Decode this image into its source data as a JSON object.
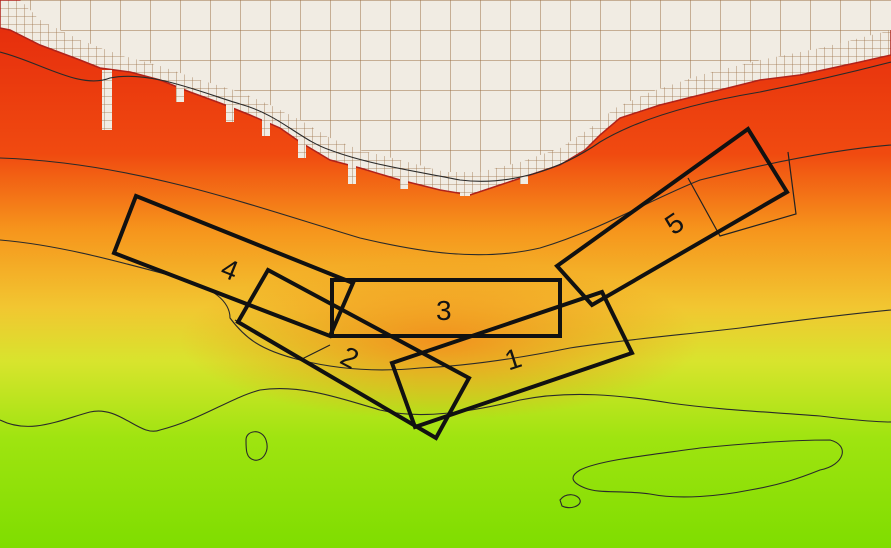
{
  "map": {
    "colors": {
      "land_fill": "#f1ece3",
      "grid_line": "#9b6f45",
      "shore_red": "#e0300e",
      "deep_green": "#7fe000",
      "contour": "#2a2a2a",
      "panel_outline": "#111111"
    },
    "panels": [
      {
        "id": "panel-1",
        "label": "1"
      },
      {
        "id": "panel-2",
        "label": "2"
      },
      {
        "id": "panel-3",
        "label": "3"
      },
      {
        "id": "panel-4",
        "label": "4"
      },
      {
        "id": "panel-5",
        "label": "5"
      }
    ]
  }
}
